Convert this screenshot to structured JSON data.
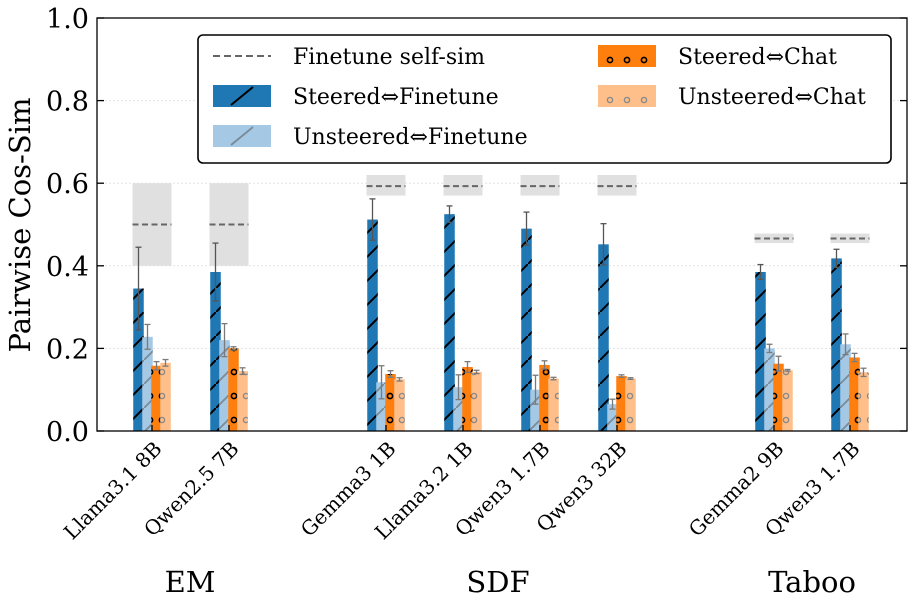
{
  "chart_data": {
    "type": "bar",
    "ylabel": "Pairwise Cos-Sim",
    "ylim": [
      0,
      1.0
    ],
    "yticks": [
      "0.0",
      "0.2",
      "0.4",
      "0.6",
      "0.8",
      "1.0"
    ],
    "groups": [
      {
        "name": "EM",
        "categories": [
          "Llama3.1 8B",
          "Qwen2.5 7B"
        ]
      },
      {
        "name": "SDF",
        "categories": [
          "Gemma3 1B",
          "Llama3.2 1B",
          "Qwen3 1.7B",
          "Qwen3 32B"
        ]
      },
      {
        "name": "Taboo",
        "categories": [
          "Gemma2 9B",
          "Qwen3 1.7B"
        ]
      }
    ],
    "series": [
      {
        "name": "Steered⇔Finetune",
        "color": "#1f77b4",
        "values": [
          0.345,
          0.385,
          0.512,
          0.525,
          0.49,
          0.452,
          0.385,
          0.418
        ],
        "errors": [
          0.1,
          0.07,
          0.05,
          0.02,
          0.04,
          0.05,
          0.018,
          0.022
        ]
      },
      {
        "name": "Unsteered⇔Finetune",
        "color": "#a5c8e4",
        "values": [
          0.228,
          0.22,
          0.118,
          0.106,
          0.1,
          0.065,
          0.2,
          0.21
        ],
        "errors": [
          0.03,
          0.04,
          0.04,
          0.03,
          0.035,
          0.012,
          0.01,
          0.025
        ]
      },
      {
        "name": "Steered⇔Chat",
        "color": "#ff7f0e",
        "values": [
          0.158,
          0.2,
          0.138,
          0.155,
          0.16,
          0.133,
          0.163,
          0.178
        ],
        "errors": [
          0.01,
          0.004,
          0.008,
          0.013,
          0.01,
          0.003,
          0.018,
          0.01
        ]
      },
      {
        "name": "Unsteered⇔Chat",
        "color": "#ffbf8a",
        "values": [
          0.165,
          0.145,
          0.125,
          0.143,
          0.127,
          0.127,
          0.147,
          0.142
        ],
        "errors": [
          0.008,
          0.008,
          0.004,
          0.004,
          0.003,
          0.002,
          0.002,
          0.01
        ]
      }
    ],
    "finetune_self_sim": {
      "name": "Finetune self-sim",
      "values": [
        0.5,
        0.5,
        0.593,
        0.593,
        0.593,
        0.593,
        0.466,
        0.466
      ],
      "band": [
        [
          0.4,
          0.6
        ],
        [
          0.4,
          0.6
        ],
        [
          0.57,
          0.62
        ],
        [
          0.57,
          0.62
        ],
        [
          0.57,
          0.62
        ],
        [
          0.57,
          0.62
        ],
        [
          0.455,
          0.478
        ],
        [
          0.455,
          0.478
        ]
      ]
    },
    "legend": {
      "position": "top-right",
      "entries": [
        "Finetune self-sim",
        "Steered⇔Finetune",
        "Unsteered⇔Finetune",
        "Steered⇔Chat",
        "Unsteered⇔Chat"
      ]
    }
  }
}
